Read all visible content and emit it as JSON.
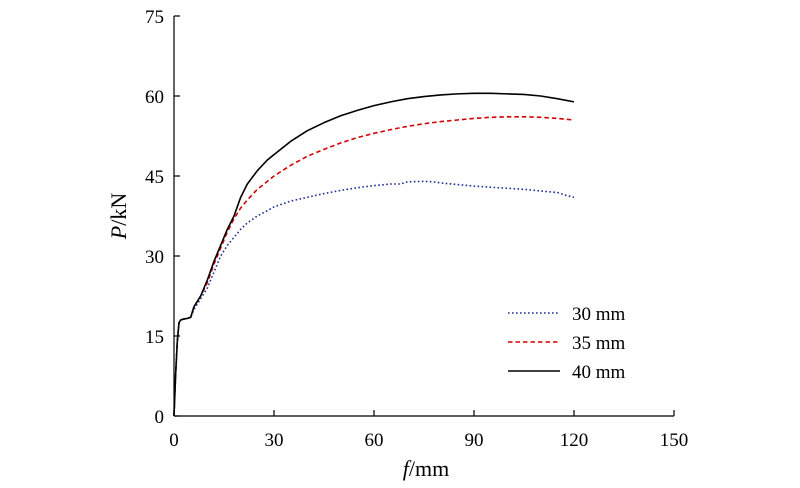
{
  "chart_data": {
    "type": "line",
    "title": "",
    "xlabel": {
      "symbol": "f",
      "unit": "/mm"
    },
    "ylabel": {
      "symbol": "P",
      "unit": "/kN"
    },
    "xlim": [
      0,
      150
    ],
    "ylim": [
      0,
      75
    ],
    "xticks": [
      0,
      30,
      60,
      90,
      120,
      150
    ],
    "yticks": [
      0,
      15,
      30,
      45,
      60,
      75
    ],
    "grid": false,
    "legend_position": "bottom-right",
    "series": [
      {
        "name": "30 mm",
        "color": "#1f2f8f",
        "dash": "dotted",
        "x": [
          0,
          0.5,
          1,
          1.5,
          2,
          3,
          4,
          5,
          6,
          8,
          10,
          12,
          14,
          16,
          18,
          20,
          22,
          25,
          28,
          30,
          35,
          40,
          45,
          50,
          55,
          60,
          65,
          68,
          70,
          75,
          78,
          80,
          85,
          90,
          95,
          100,
          105,
          110,
          115,
          118,
          120
        ],
        "y": [
          0,
          8,
          14,
          17.5,
          18,
          18.2,
          18.3,
          18.5,
          20,
          22,
          24,
          27,
          30,
          32,
          33.5,
          35,
          36.2,
          37.5,
          38.5,
          39.2,
          40.3,
          41,
          41.7,
          42.3,
          42.8,
          43.2,
          43.5,
          43.5,
          43.9,
          44,
          43.9,
          43.7,
          43.4,
          43.1,
          42.9,
          42.7,
          42.5,
          42.2,
          41.9,
          41.3,
          41
        ]
      },
      {
        "name": "35 mm",
        "color": "#d40000",
        "dash": "dashed",
        "x": [
          0,
          0.5,
          1,
          1.5,
          2,
          3,
          4,
          5,
          6,
          8,
          10,
          12,
          14,
          16,
          18,
          20,
          22,
          25,
          28,
          30,
          35,
          40,
          45,
          50,
          55,
          60,
          65,
          70,
          75,
          80,
          85,
          90,
          95,
          100,
          105,
          110,
          115,
          120
        ],
        "y": [
          0,
          8,
          14,
          17.5,
          18,
          18.2,
          18.3,
          18.5,
          20.5,
          22.5,
          25,
          28.5,
          31.5,
          34.5,
          37,
          39,
          40.5,
          42.5,
          44,
          45,
          47,
          48.7,
          50,
          51.2,
          52.2,
          53,
          53.7,
          54.3,
          54.8,
          55.2,
          55.5,
          55.8,
          56,
          56.1,
          56.1,
          56,
          55.8,
          55.5
        ]
      },
      {
        "name": "40 mm",
        "color": "#000000",
        "dash": "solid",
        "x": [
          0,
          0.5,
          1,
          1.5,
          2,
          3,
          4,
          5,
          6,
          8,
          10,
          12,
          14,
          16,
          18,
          20,
          22,
          25,
          28,
          30,
          35,
          40,
          45,
          50,
          55,
          60,
          65,
          70,
          75,
          80,
          85,
          90,
          95,
          100,
          105,
          110,
          115,
          120
        ],
        "y": [
          0,
          8,
          14,
          17.5,
          18,
          18.2,
          18.3,
          18.5,
          20.5,
          22.5,
          25.5,
          29,
          32,
          35,
          37.5,
          41,
          43.5,
          46,
          48,
          49,
          51.5,
          53.5,
          55,
          56.3,
          57.3,
          58.2,
          58.9,
          59.5,
          59.9,
          60.2,
          60.4,
          60.5,
          60.5,
          60.4,
          60.3,
          60,
          59.5,
          58.9
        ]
      }
    ]
  }
}
